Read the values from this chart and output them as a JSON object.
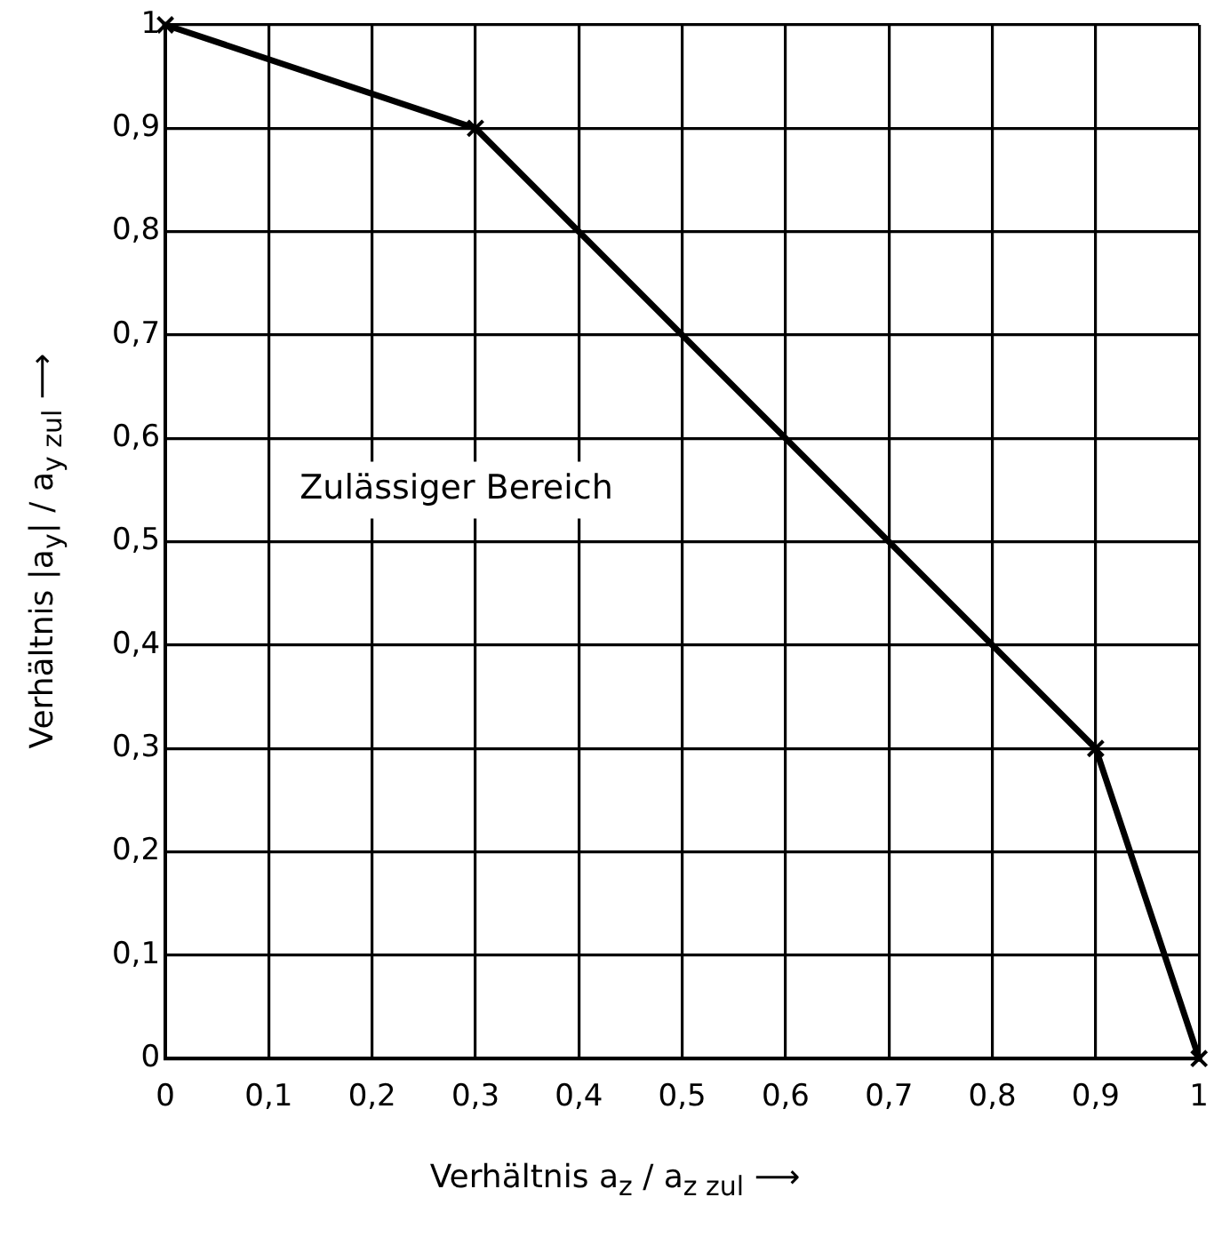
{
  "chart_data": {
    "type": "line",
    "xlabel": "Verhältnis a$_{z}$ / a$_{z zul}$ ⟶",
    "ylabel": "Verhältnis |a$_{y}$| / a$_{y zul}$ ⟶",
    "x": [
      0,
      0.3,
      0.9,
      1
    ],
    "series": [
      {
        "color": "#000000",
        "values": [
          1,
          0.9,
          0.3,
          0
        ]
      }
    ],
    "xlim": [
      0,
      1
    ],
    "ylim": [
      0,
      1
    ],
    "xticks": [
      0,
      {
        "value": 0.1,
        "label": "0,1"
      },
      {
        "value": 0.2,
        "label": "0,2"
      },
      {
        "value": 0.3,
        "label": "0,3"
      },
      {
        "value": 0.4,
        "label": "0,4"
      },
      {
        "value": 0.5,
        "label": "0,5"
      },
      {
        "value": 0.6,
        "label": "0,6"
      },
      {
        "value": 0.7,
        "label": "0,7"
      },
      {
        "value": 0.8,
        "label": "0,8"
      },
      {
        "value": 0.9,
        "label": "0,9"
      },
      1
    ],
    "yticks": [
      0,
      {
        "value": 0.1,
        "label": "0,1"
      },
      {
        "value": 0.2,
        "label": "0,2"
      },
      {
        "value": 0.3,
        "label": "0,3"
      },
      {
        "value": 0.4,
        "label": "0,4"
      },
      {
        "value": 0.5,
        "label": "0,5"
      },
      {
        "value": 0.6,
        "label": "0,6"
      },
      {
        "value": 0.7,
        "label": "0,7"
      },
      {
        "value": 0.8,
        "label": "0,8"
      },
      {
        "value": 0.9,
        "label": "0,9"
      },
      1
    ],
    "annotations": [
      "Zulässiger Bereich"
    ],
    "grid": true,
    "legend": false,
    "marker": "cross",
    "line_style": "solid"
  }
}
